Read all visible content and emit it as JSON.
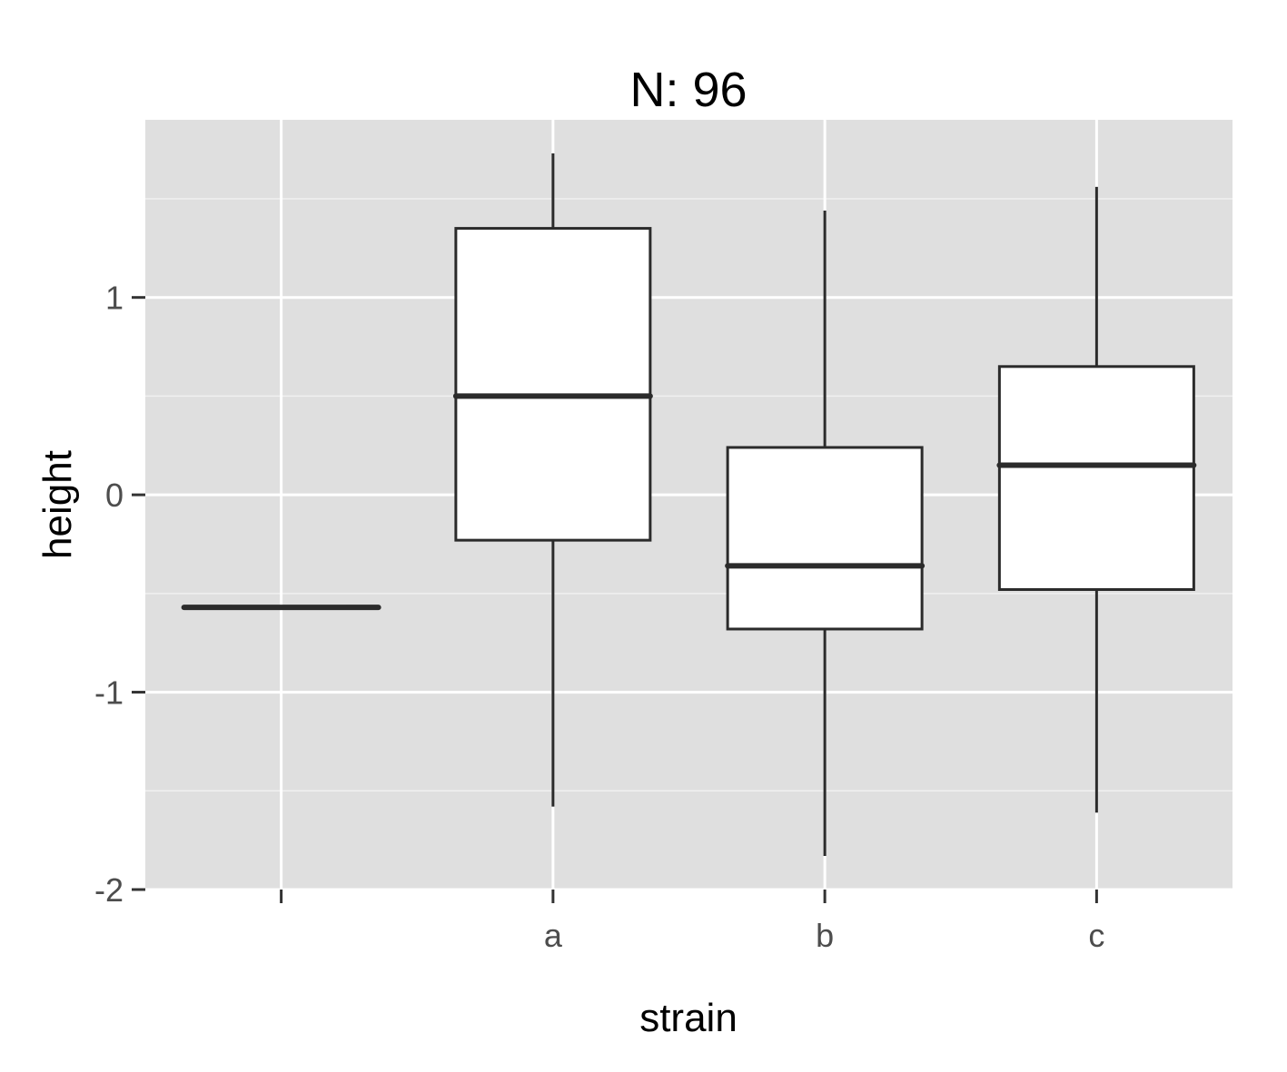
{
  "chart_data": {
    "type": "boxplot",
    "title": "N: 96",
    "xlabel": "strain",
    "ylabel": "height",
    "categories": [
      "",
      "a",
      "b",
      "c"
    ],
    "ylim": [
      -2,
      1.9
    ],
    "yticks": [
      "1",
      "0",
      "-1",
      "-2"
    ],
    "boxes": [
      {
        "category": "",
        "min": -0.57,
        "q1": -0.57,
        "median": -0.57,
        "q3": -0.57,
        "max": -0.57
      },
      {
        "category": "a",
        "min": -1.58,
        "q1": -0.23,
        "median": 0.5,
        "q3": 1.35,
        "max": 1.73
      },
      {
        "category": "b",
        "min": -1.83,
        "q1": -0.68,
        "median": -0.36,
        "q3": 0.24,
        "max": 1.44
      },
      {
        "category": "c",
        "min": -1.61,
        "q1": -0.48,
        "median": 0.15,
        "q3": 0.65,
        "max": 1.56
      }
    ],
    "grid": true,
    "legend": "none",
    "colors": {
      "panel": "#dfdfdf",
      "grid_major": "#ffffff",
      "grid_minor": "#f0f0f0",
      "box_fill": "#ffffff",
      "box_stroke": "#2b2b2b",
      "tick_text": "#4d4d4d"
    }
  }
}
